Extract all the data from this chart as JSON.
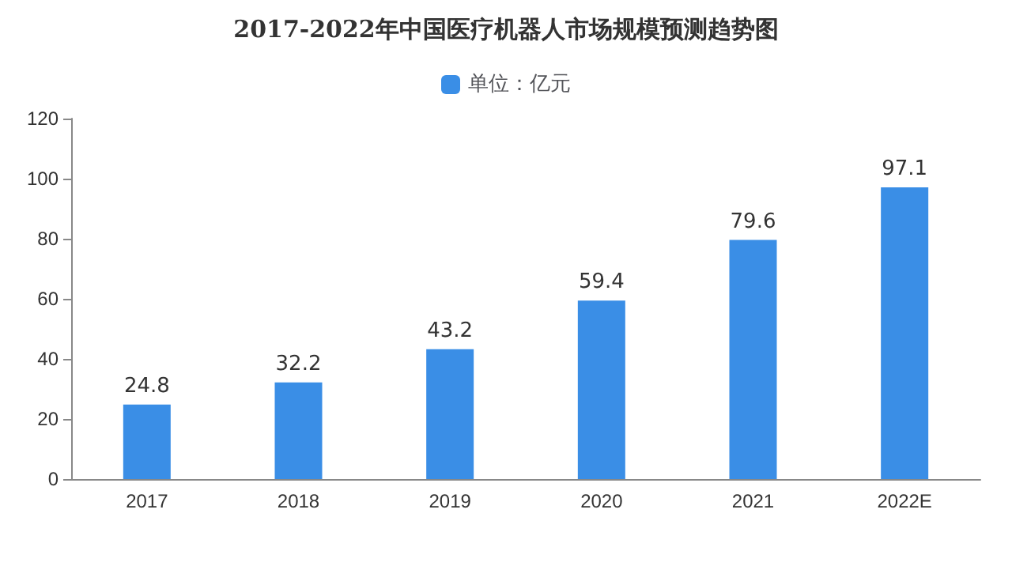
{
  "chart_data": {
    "type": "bar",
    "title": "2017-2022年中国医疗机器人市场规模预测趋势图",
    "categories": [
      "2017",
      "2018",
      "2019",
      "2020",
      "2021",
      "2022E"
    ],
    "series": [
      {
        "name": "单位：亿元",
        "color": "#3a8ee6",
        "values": [
          24.8,
          32.2,
          43.2,
          59.4,
          79.6,
          97.1
        ]
      }
    ],
    "ylim": [
      0,
      120
    ],
    "yticks": [
      0,
      20,
      40,
      60,
      80,
      100,
      120
    ],
    "grid": false,
    "legend": "top",
    "data_labels": true
  }
}
